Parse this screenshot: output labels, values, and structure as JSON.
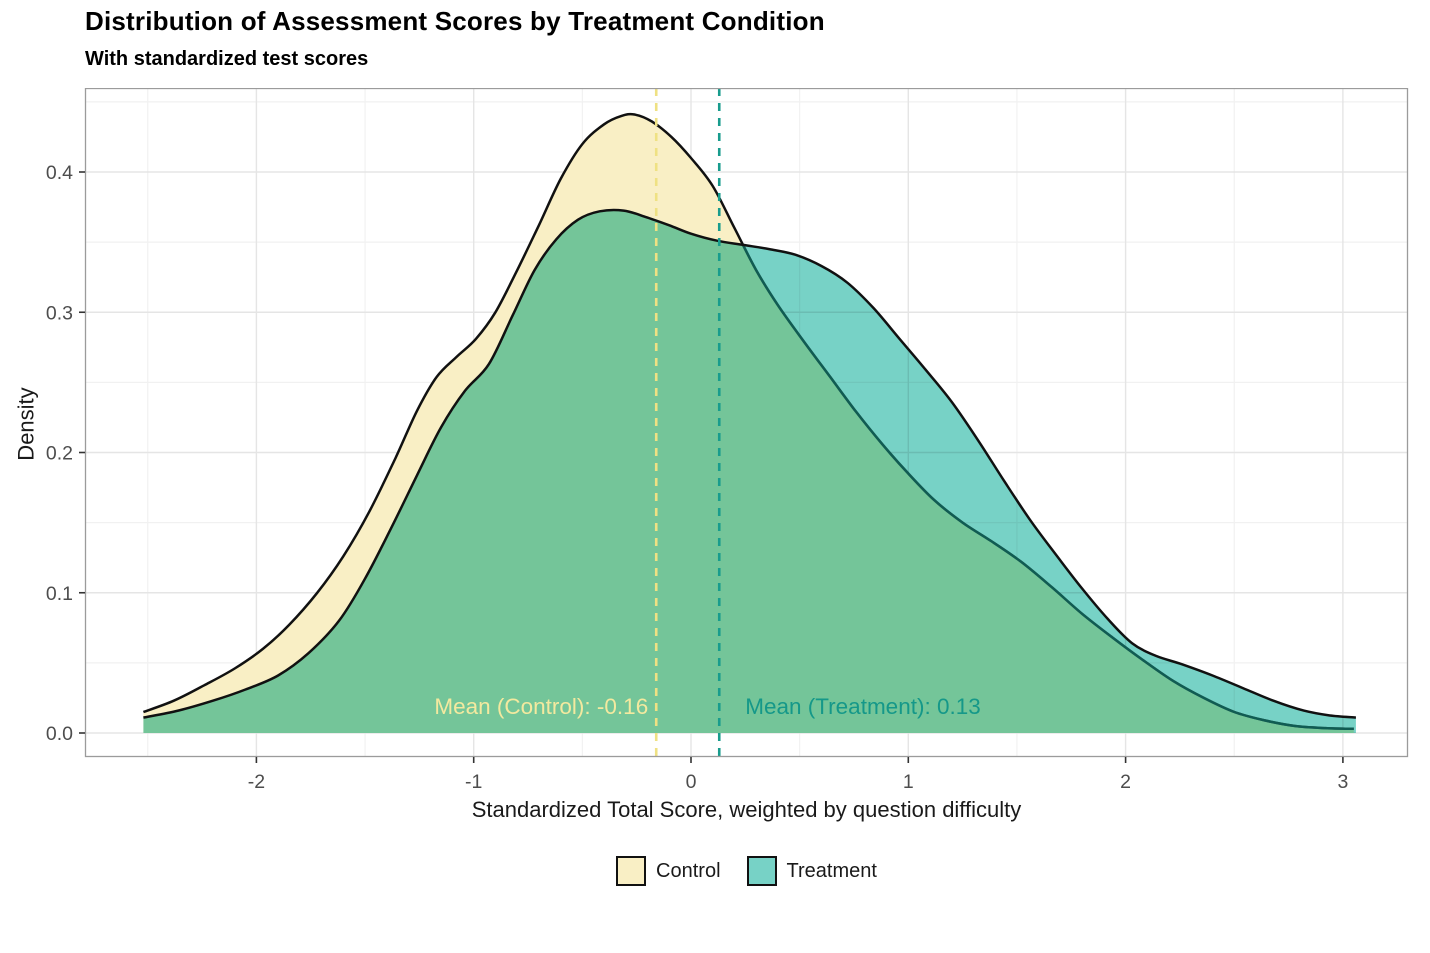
{
  "title": "Distribution of Assessment Scores by Treatment Condition",
  "subtitle": "With standardized test scores",
  "axes": {
    "x": {
      "label": "Standardized Total Score, weighted by question difficulty",
      "tick_labels": [
        "-2",
        "-1",
        "0",
        "1",
        "2",
        "3"
      ],
      "ticks": [
        -2,
        -1,
        0,
        1,
        2,
        3
      ],
      "minor_ticks": [
        -2.5,
        -1.5,
        -0.5,
        0.5,
        1.5,
        2.5
      ],
      "range": [
        -2.79,
        3.3
      ]
    },
    "y": {
      "label": "Density",
      "tick_labels": [
        "0.0",
        "0.1",
        "0.2",
        "0.3",
        "0.4"
      ],
      "ticks": [
        0,
        0.1,
        0.2,
        0.3,
        0.4
      ],
      "minor_ticks": [
        0.05,
        0.15,
        0.25,
        0.35,
        0.45
      ],
      "range": [
        -0.017,
        0.46
      ]
    }
  },
  "legend": {
    "items": [
      {
        "label": "Control",
        "color": "#F9EFC5"
      },
      {
        "label": "Treatment",
        "color": "#77D2C6"
      }
    ]
  },
  "style": {
    "grid_major_color": "#e5e5e5",
    "grid_minor_color": "#f1f1f1",
    "panel_border_color": "#9b9b9b",
    "tick_label_color": "#4d4d4d",
    "tick_mark_color": "#333333",
    "curve_stroke": "#111111"
  },
  "chart_data": {
    "type": "area",
    "subtype": "overlapping-density",
    "title": "Distribution of Assessment Scores by Treatment Condition",
    "subtitle": "With standardized test scores",
    "xlabel": "Standardized Total Score, weighted by question difficulty",
    "ylabel": "Density",
    "xlim": [
      -2.79,
      3.3
    ],
    "ylim": [
      -0.017,
      0.46
    ],
    "grid": "major+minor",
    "legend_position": "bottom",
    "series": [
      {
        "name": "Control",
        "fill": "#F9EFC5",
        "stroke": "#111111",
        "mean": -0.16,
        "points": [
          [
            -2.52,
            0.015
          ],
          [
            -2.38,
            0.023
          ],
          [
            -2.24,
            0.034
          ],
          [
            -2.1,
            0.046
          ],
          [
            -1.97,
            0.06
          ],
          [
            -1.85,
            0.077
          ],
          [
            -1.72,
            0.1
          ],
          [
            -1.6,
            0.126
          ],
          [
            -1.48,
            0.158
          ],
          [
            -1.36,
            0.196
          ],
          [
            -1.26,
            0.23
          ],
          [
            -1.17,
            0.254
          ],
          [
            -1.08,
            0.268
          ],
          [
            -0.99,
            0.281
          ],
          [
            -0.9,
            0.3
          ],
          [
            -0.8,
            0.33
          ],
          [
            -0.7,
            0.362
          ],
          [
            -0.6,
            0.395
          ],
          [
            -0.5,
            0.42
          ],
          [
            -0.4,
            0.434
          ],
          [
            -0.32,
            0.44
          ],
          [
            -0.26,
            0.441
          ],
          [
            -0.18,
            0.436
          ],
          [
            -0.09,
            0.425
          ],
          [
            0.0,
            0.41
          ],
          [
            0.1,
            0.39
          ],
          [
            0.2,
            0.36
          ],
          [
            0.3,
            0.33
          ],
          [
            0.4,
            0.305
          ],
          [
            0.52,
            0.279
          ],
          [
            0.64,
            0.254
          ],
          [
            0.76,
            0.229
          ],
          [
            0.88,
            0.206
          ],
          [
            1.0,
            0.185
          ],
          [
            1.12,
            0.166
          ],
          [
            1.25,
            0.15
          ],
          [
            1.38,
            0.137
          ],
          [
            1.52,
            0.122
          ],
          [
            1.66,
            0.104
          ],
          [
            1.8,
            0.085
          ],
          [
            1.94,
            0.068
          ],
          [
            2.08,
            0.052
          ],
          [
            2.22,
            0.037
          ],
          [
            2.36,
            0.025
          ],
          [
            2.5,
            0.015
          ],
          [
            2.64,
            0.009
          ],
          [
            2.78,
            0.005
          ],
          [
            2.92,
            0.0035
          ],
          [
            3.05,
            0.003
          ]
        ]
      },
      {
        "name": "Treatment",
        "fill": "#77D2C6",
        "stroke": "#111111",
        "blend": "multiply",
        "mean": 0.13,
        "points": [
          [
            -2.52,
            0.011
          ],
          [
            -2.36,
            0.016
          ],
          [
            -2.2,
            0.023
          ],
          [
            -2.05,
            0.031
          ],
          [
            -1.9,
            0.041
          ],
          [
            -1.76,
            0.057
          ],
          [
            -1.62,
            0.08
          ],
          [
            -1.5,
            0.11
          ],
          [
            -1.38,
            0.146
          ],
          [
            -1.26,
            0.184
          ],
          [
            -1.15,
            0.218
          ],
          [
            -1.04,
            0.244
          ],
          [
            -0.93,
            0.263
          ],
          [
            -0.82,
            0.298
          ],
          [
            -0.72,
            0.33
          ],
          [
            -0.62,
            0.352
          ],
          [
            -0.52,
            0.366
          ],
          [
            -0.42,
            0.372
          ],
          [
            -0.31,
            0.3725
          ],
          [
            -0.21,
            0.368
          ],
          [
            -0.1,
            0.362
          ],
          [
            0.0,
            0.356
          ],
          [
            0.12,
            0.351
          ],
          [
            0.24,
            0.348
          ],
          [
            0.36,
            0.345
          ],
          [
            0.48,
            0.341
          ],
          [
            0.6,
            0.333
          ],
          [
            0.72,
            0.321
          ],
          [
            0.84,
            0.303
          ],
          [
            0.96,
            0.281
          ],
          [
            1.08,
            0.259
          ],
          [
            1.2,
            0.236
          ],
          [
            1.32,
            0.209
          ],
          [
            1.44,
            0.18
          ],
          [
            1.56,
            0.152
          ],
          [
            1.68,
            0.127
          ],
          [
            1.8,
            0.103
          ],
          [
            1.92,
            0.081
          ],
          [
            2.03,
            0.064
          ],
          [
            2.14,
            0.055
          ],
          [
            2.26,
            0.049
          ],
          [
            2.4,
            0.041
          ],
          [
            2.54,
            0.032
          ],
          [
            2.68,
            0.023
          ],
          [
            2.82,
            0.016
          ],
          [
            2.94,
            0.0125
          ],
          [
            3.06,
            0.011
          ]
        ]
      }
    ],
    "mean_lines": [
      {
        "series": "Control",
        "x": -0.16,
        "color": "#EFE183",
        "label": "Mean (Control): -0.16",
        "label_color": "#F3E99F",
        "label_side": "left"
      },
      {
        "series": "Treatment",
        "x": 0.13,
        "color": "#189C8D",
        "label": "Mean (Treatment): 0.13",
        "label_color": "#159889",
        "label_side": "right"
      }
    ]
  }
}
